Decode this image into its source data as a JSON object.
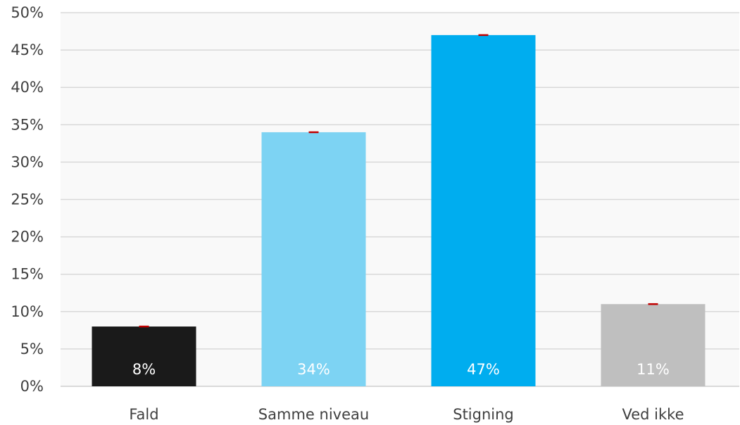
{
  "chart_data": {
    "type": "bar",
    "categories": [
      "Fald",
      "Samme niveau",
      "Stigning",
      "Ved ikke"
    ],
    "values": [
      8,
      34,
      47,
      11
    ],
    "data_labels": [
      "8%",
      "34%",
      "47%",
      "11%"
    ],
    "ylim": [
      0,
      50
    ],
    "yticks": [
      0,
      5,
      10,
      15,
      20,
      25,
      30,
      35,
      40,
      45,
      50
    ],
    "ytick_labels": [
      "0%",
      "5%",
      "10%",
      "15%",
      "20%",
      "25%",
      "30%",
      "35%",
      "40%",
      "45%",
      "50%"
    ],
    "grid": true,
    "legend": "none",
    "colors": [
      "#1a1a1a",
      "#7dd3f3",
      "#00adef",
      "#bfbfbf"
    ],
    "label_colors": [
      "#ffffff",
      "#ffffff",
      "#ffffff",
      "#ffffff"
    ],
    "error_bar_color": "#c00000",
    "gridline_color": "#d9d9d9",
    "plot_background": "#f9f9f9"
  }
}
